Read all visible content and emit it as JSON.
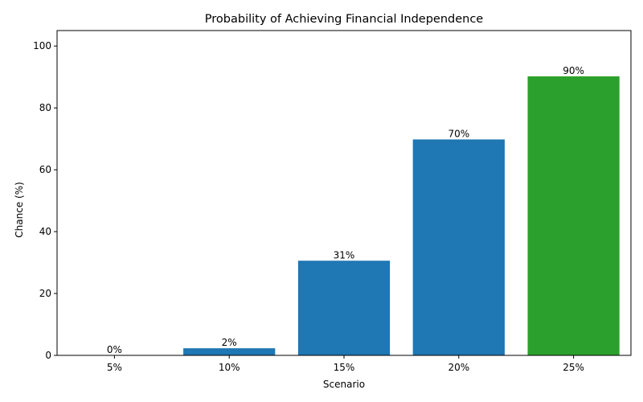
{
  "chart_data": {
    "type": "bar",
    "title": "Probability of Achieving Financial Independence",
    "xlabel": "Scenario",
    "ylabel": "Chance (%)",
    "categories": [
      "5%",
      "10%",
      "15%",
      "20%",
      "25%"
    ],
    "values": [
      0,
      2.3,
      30.6,
      69.8,
      90.2
    ],
    "data_labels": [
      "0%",
      "2%",
      "31%",
      "70%",
      "90%"
    ],
    "bar_colors": [
      "#1f77b4",
      "#1f77b4",
      "#1f77b4",
      "#1f77b4",
      "#2ca02c"
    ],
    "ylim": [
      0,
      105
    ],
    "yticks": [
      0,
      20,
      40,
      60,
      80,
      100
    ],
    "grid": false,
    "legend": "none"
  }
}
